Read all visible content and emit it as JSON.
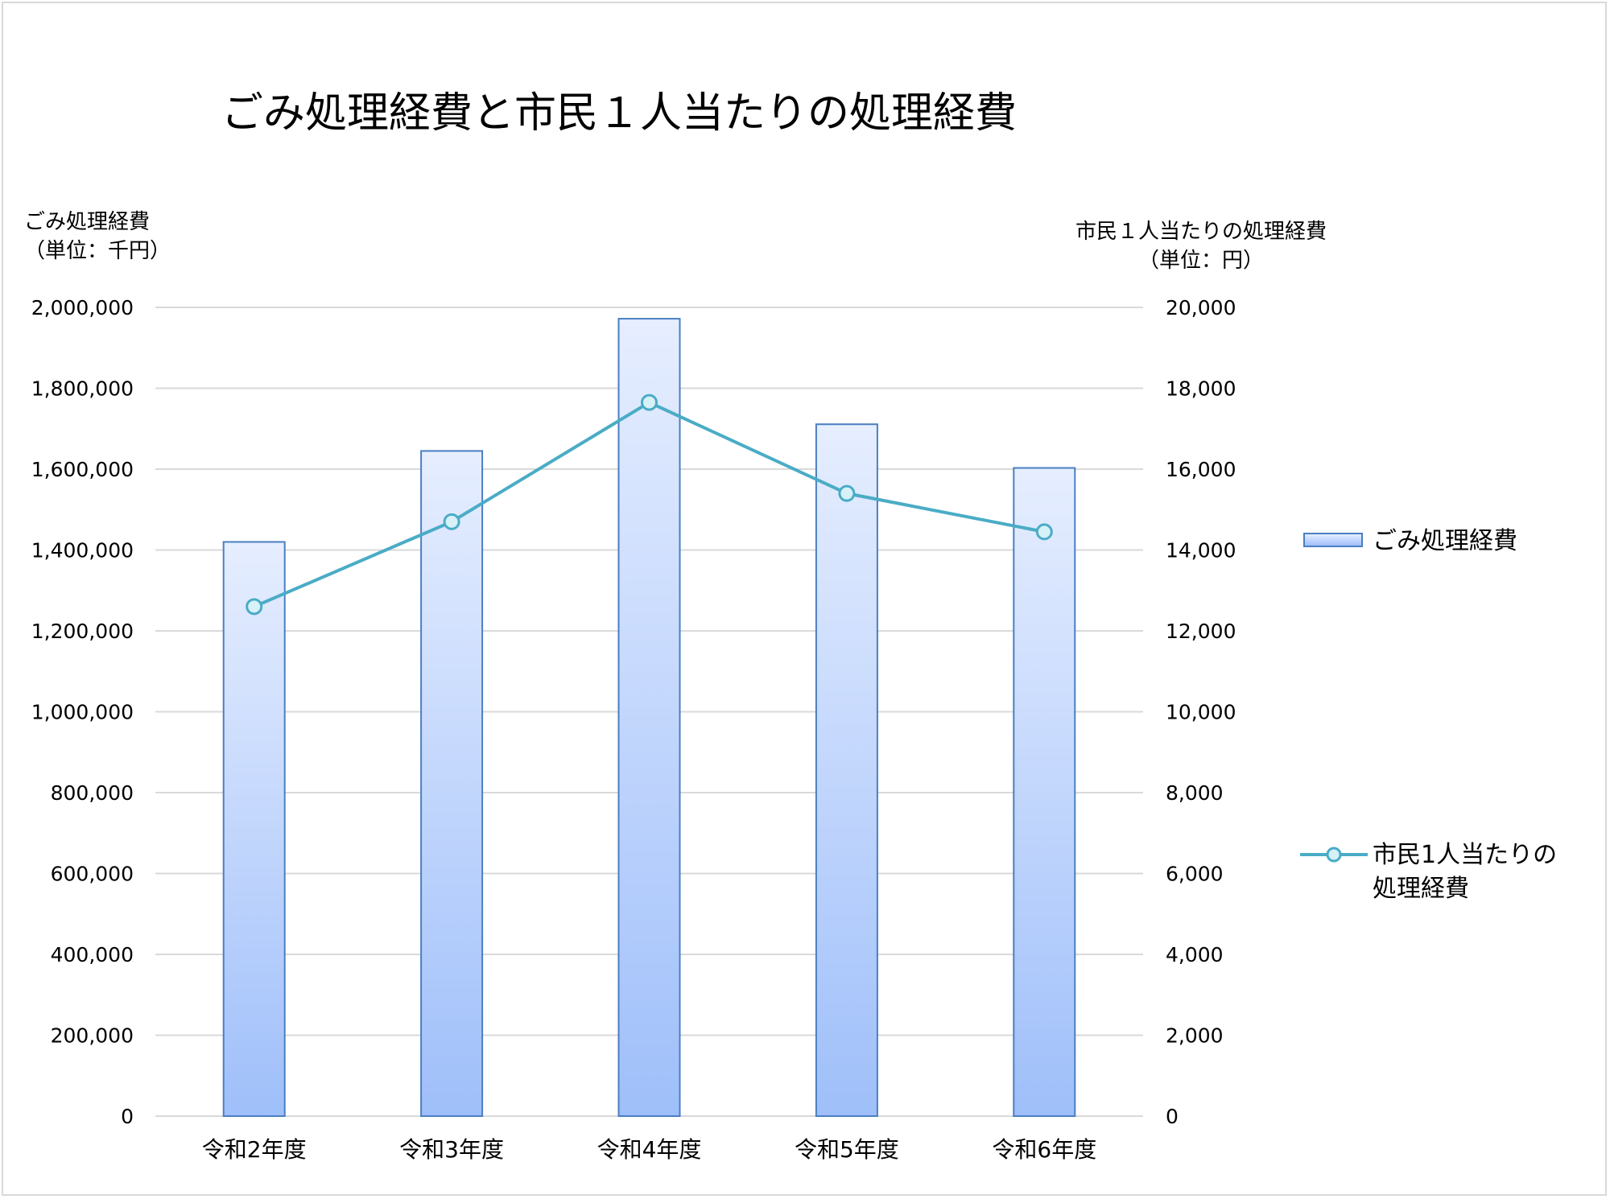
{
  "title": "ごみ処理経費と市民１人当たりの処理経費",
  "left_axis_title": [
    "ごみ処理経費",
    "（単位：千円）"
  ],
  "right_axis_title": [
    "市民１人当たりの処理経費",
    "（単位：円）"
  ],
  "legend": {
    "bar_label": "ごみ処理経費",
    "line_label": [
      "市民1人当たりの",
      "処理経費"
    ]
  },
  "colors": {
    "bar_top": "#e6eeff",
    "bar_bottom": "#9fbffa",
    "bar_border": "#4a7fc1",
    "line": "#4aacc6",
    "marker_fill": "#d6f1f7",
    "gridline": "#d9d9d9"
  },
  "chart_data": {
    "type": "bar",
    "title": "ごみ処理経費と市民１人当たりの処理経費",
    "categories": [
      "令和2年度",
      "令和3年度",
      "令和4年度",
      "令和5年度",
      "令和6年度"
    ],
    "series": [
      {
        "name": "ごみ処理経費",
        "type": "bar",
        "axis": "left",
        "values": [
          1420000,
          1645000,
          1972000,
          1711000,
          1603000
        ]
      },
      {
        "name": "市民1人当たりの処理経費",
        "type": "line",
        "axis": "right",
        "values": [
          12600,
          14700,
          17650,
          15400,
          14450
        ]
      }
    ],
    "ylim_left": [
      0,
      2000000
    ],
    "ylim_right": [
      0,
      20000
    ],
    "yticks_left": [
      "0",
      "200,000",
      "400,000",
      "600,000",
      "800,000",
      "1,000,000",
      "1,200,000",
      "1,400,000",
      "1,600,000",
      "1,800,000",
      "2,000,000"
    ],
    "yticks_right": [
      "0",
      "2,000",
      "4,000",
      "6,000",
      "8,000",
      "10,000",
      "12,000",
      "14,000",
      "16,000",
      "18,000",
      "20,000"
    ],
    "grid": true,
    "legend_position": "right"
  }
}
